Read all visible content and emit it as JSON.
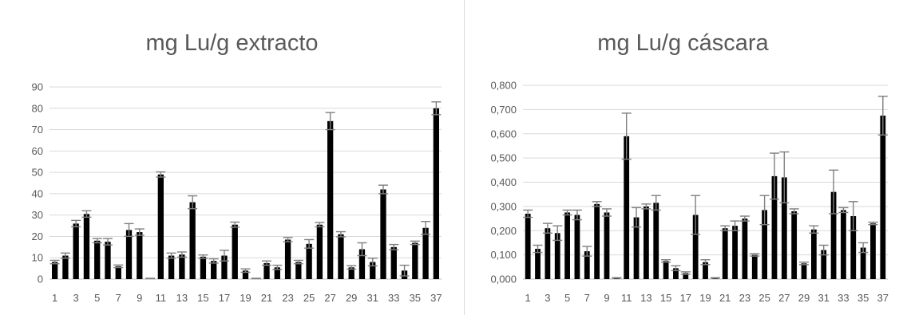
{
  "chart_data": [
    {
      "type": "bar",
      "title": "mg Lu/g extracto",
      "ylim": [
        0,
        90
      ],
      "yticks": [
        "0",
        "10",
        "20",
        "30",
        "40",
        "50",
        "60",
        "70",
        "80",
        "90"
      ],
      "grid": true,
      "categories": [
        "1",
        "2",
        "3",
        "4",
        "5",
        "6",
        "7",
        "8",
        "9",
        "10",
        "11",
        "12",
        "13",
        "14",
        "15",
        "16",
        "17",
        "18",
        "19",
        "20",
        "21",
        "22",
        "23",
        "24",
        "25",
        "26",
        "27",
        "28",
        "29",
        "30",
        "31",
        "32",
        "33",
        "34",
        "35",
        "36",
        "37"
      ],
      "xtick_labels": [
        "1",
        "3",
        "5",
        "7",
        "9",
        "11",
        "13",
        "15",
        "17",
        "19",
        "21",
        "23",
        "25",
        "27",
        "29",
        "31",
        "33",
        "35",
        "37"
      ],
      "values": [
        8,
        11,
        26,
        30.5,
        18,
        17.5,
        6,
        23,
        22,
        0.3,
        49,
        11,
        11.5,
        36,
        10.5,
        8.5,
        11,
        25.5,
        4,
        0.3,
        7.5,
        5.5,
        18.5,
        8,
        16.5,
        25.5,
        74,
        21,
        5.5,
        14,
        8,
        42,
        15,
        4,
        17,
        24,
        80
      ],
      "errors": [
        0.8,
        1.2,
        1.5,
        1.5,
        1.0,
        1.5,
        0.6,
        3.0,
        1.5,
        0.1,
        1.2,
        1.2,
        1.2,
        3.0,
        0.8,
        1.0,
        2.5,
        1.2,
        0.8,
        0.1,
        1.0,
        1.0,
        1.0,
        0.8,
        2.0,
        1.0,
        4.0,
        1.2,
        0.8,
        3.0,
        1.8,
        2.0,
        1.2,
        2.5,
        0.8,
        3.0,
        3.0
      ]
    },
    {
      "type": "bar",
      "title": "mg Lu/g cáscara",
      "ylim": [
        0,
        0.8
      ],
      "yticks": [
        "0,000",
        "0,100",
        "0,200",
        "0,300",
        "0,400",
        "0,500",
        "0,600",
        "0,700",
        "0,800"
      ],
      "grid": true,
      "categories": [
        "1",
        "2",
        "3",
        "4",
        "5",
        "6",
        "7",
        "8",
        "9",
        "10",
        "11",
        "12",
        "13",
        "14",
        "15",
        "16",
        "17",
        "18",
        "19",
        "20",
        "21",
        "22",
        "23",
        "24",
        "25",
        "26",
        "27",
        "28",
        "29",
        "30",
        "31",
        "32",
        "33",
        "34",
        "35",
        "36",
        "37"
      ],
      "xtick_labels": [
        "1",
        "3",
        "5",
        "7",
        "9",
        "11",
        "13",
        "15",
        "17",
        "19",
        "21",
        "23",
        "25",
        "27",
        "29",
        "31",
        "33",
        "35",
        "37"
      ],
      "values": [
        0.27,
        0.125,
        0.21,
        0.19,
        0.275,
        0.265,
        0.115,
        0.31,
        0.275,
        0.005,
        0.59,
        0.255,
        0.3,
        0.315,
        0.075,
        0.045,
        0.025,
        0.265,
        0.07,
        0.005,
        0.21,
        0.22,
        0.25,
        0.1,
        0.285,
        0.425,
        0.42,
        0.28,
        0.065,
        0.205,
        0.12,
        0.36,
        0.285,
        0.26,
        0.13,
        0.23,
        0.675
      ],
      "errors": [
        0.015,
        0.015,
        0.02,
        0.03,
        0.01,
        0.02,
        0.02,
        0.01,
        0.015,
        0.001,
        0.095,
        0.04,
        0.01,
        0.03,
        0.005,
        0.01,
        0.005,
        0.08,
        0.01,
        0.001,
        0.01,
        0.02,
        0.01,
        0.005,
        0.06,
        0.095,
        0.105,
        0.01,
        0.005,
        0.015,
        0.02,
        0.09,
        0.01,
        0.06,
        0.02,
        0.005,
        0.08
      ]
    }
  ]
}
